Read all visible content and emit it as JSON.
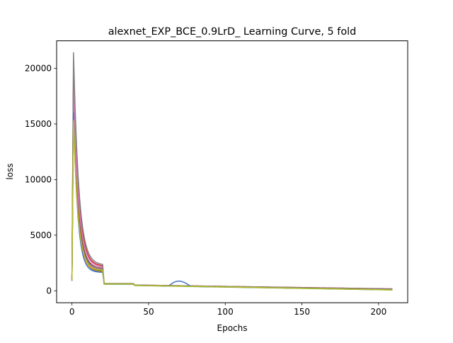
{
  "chart_data": {
    "type": "line",
    "title": "alexnet_EXP_BCE_0.9LrD_ Learning Curve, 5 fold",
    "xlabel": "Epochs",
    "ylabel": "loss",
    "xlim": [
      -10,
      219
    ],
    "ylim": [
      -1070,
      22470
    ],
    "xticks": [
      0,
      50,
      100,
      150,
      200
    ],
    "yticks": [
      0,
      5000,
      10000,
      15000,
      20000
    ],
    "grid": false,
    "legend": "none",
    "series": [
      {
        "color": "#1f77b4",
        "peak": 19000,
        "startVal": 1000,
        "drop": 1700,
        "k": 0.35,
        "plateau": 620,
        "tailEnd": 110,
        "bump": 0
      },
      {
        "color": "#ff7f0e",
        "peak": 17000,
        "startVal": 900,
        "drop": 1750,
        "k": 0.34,
        "plateau": 630,
        "tailEnd": 120,
        "bump": 0
      },
      {
        "color": "#2ca02c",
        "peak": 18000,
        "startVal": 1000,
        "drop": 1800,
        "k": 0.33,
        "plateau": 600,
        "tailEnd": 80,
        "bump": 0
      },
      {
        "color": "#d62728",
        "peak": 20000,
        "startVal": 1200,
        "drop": 2200,
        "k": 0.3,
        "plateau": 650,
        "tailEnd": 180,
        "bump": 0
      },
      {
        "color": "#9467bd",
        "peak": 17500,
        "startVal": 900,
        "drop": 1900,
        "k": 0.32,
        "plateau": 620,
        "tailEnd": 140,
        "bump": 0
      },
      {
        "color": "#8c564b",
        "peak": 16500,
        "startVal": 1100,
        "drop": 2000,
        "k": 0.31,
        "plateau": 640,
        "tailEnd": 150,
        "bump": 0
      },
      {
        "color": "#e377c2",
        "peak": 18500,
        "startVal": 1000,
        "drop": 2100,
        "k": 0.3,
        "plateau": 630,
        "tailEnd": 130,
        "bump": 0
      },
      {
        "color": "#7f7f7f",
        "peak": 21400,
        "startVal": 1000,
        "drop": 2300,
        "k": 0.29,
        "plateau": 660,
        "tailEnd": 160,
        "bump": 0
      },
      {
        "color": "#4472c4",
        "peak": 16000,
        "startVal": 1000,
        "drop": 1650,
        "k": 0.36,
        "plateau": 610,
        "tailEnd": 100,
        "bump": 950
      },
      {
        "color": "#bcbd22",
        "peak": 15300,
        "startVal": 1000,
        "drop": 1850,
        "k": 0.33,
        "plateau": 620,
        "tailEnd": 90,
        "bump": 0
      }
    ]
  }
}
